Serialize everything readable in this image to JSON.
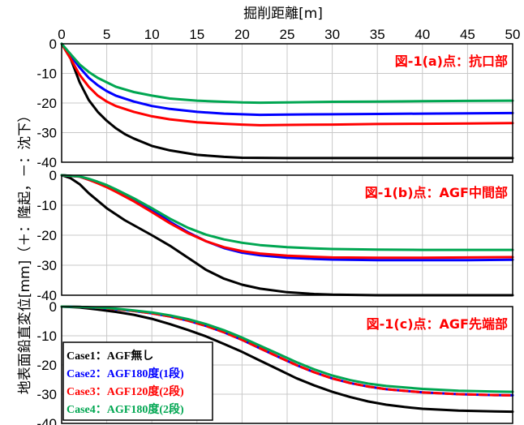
{
  "chart_data": {
    "type": "line",
    "title": "掘削距離[m]",
    "xlabel": "掘削距離[m]",
    "ylabel": "地表面鉛直変位[mm]（＋：隆起，－：沈下）",
    "xlim": [
      0,
      50
    ],
    "ylim": [
      -40,
      0
    ],
    "x_ticks": [
      "0",
      "5",
      "10",
      "15",
      "20",
      "25",
      "30",
      "35",
      "40",
      "45",
      "50"
    ],
    "y_ticks": [
      "0",
      "-10",
      "-20",
      "-30",
      "-40"
    ],
    "grid": true,
    "legend_position": "bottom-left",
    "legend": [
      {
        "label": "Case1：AGF無し",
        "color": "#000000"
      },
      {
        "label": "Case2：AGF180度(1段)",
        "color": "#0000ff"
      },
      {
        "label": "Case3：AGF120度(2段)",
        "color": "#ff0000"
      },
      {
        "label": "Case4：AGF180度(2段)",
        "color": "#00a651"
      }
    ],
    "panels": [
      {
        "label": "図-1(a)点：抗口部",
        "series": [
          {
            "name": "Case1：AGF無し",
            "color": "#000000",
            "x": [
              0,
              1,
              2,
              3,
              4,
              5,
              6,
              7,
              8,
              10,
              12,
              15,
              18,
              20,
              25,
              30,
              35,
              40,
              45,
              50
            ],
            "y": [
              0,
              -5,
              -13,
              -19,
              -23,
              -26,
              -28.5,
              -30.5,
              -32,
              -34.5,
              -36,
              -37.5,
              -38.2,
              -38.5,
              -38.6,
              -38.6,
              -38.6,
              -38.6,
              -38.6,
              -38.6
            ]
          },
          {
            "name": "Case2：AGF180度(1段)",
            "color": "#0000ff",
            "x": [
              0,
              1,
              2,
              3,
              4,
              5,
              6,
              8,
              10,
              12,
              15,
              18,
              20,
              22,
              25,
              30,
              35,
              40,
              45,
              50
            ],
            "y": [
              0,
              -4,
              -8,
              -11.5,
              -14,
              -16,
              -17.5,
              -19.5,
              -21,
              -22,
              -23,
              -23.6,
              -23.8,
              -24,
              -23.9,
              -23.8,
              -23.7,
              -23.6,
              -23.5,
              -23.4
            ]
          },
          {
            "name": "Case3：AGF120度(2段)",
            "color": "#ff0000",
            "x": [
              0,
              1,
              2,
              3,
              4,
              5,
              6,
              8,
              10,
              12,
              15,
              18,
              20,
              22,
              25,
              30,
              35,
              40,
              45,
              50
            ],
            "y": [
              0,
              -5,
              -10.5,
              -14.5,
              -17.5,
              -19.5,
              -21,
              -23,
              -24.5,
              -25.5,
              -26.5,
              -27,
              -27.3,
              -27.5,
              -27.4,
              -27.3,
              -27.1,
              -27,
              -26.9,
              -26.8
            ]
          },
          {
            "name": "Case4：AGF180度(2段)",
            "color": "#00a651",
            "x": [
              0,
              1,
              2,
              3,
              4,
              5,
              6,
              8,
              10,
              12,
              15,
              18,
              20,
              22,
              25,
              30,
              35,
              40,
              45,
              50
            ],
            "y": [
              0,
              -3.5,
              -7,
              -9.5,
              -11.5,
              -13,
              -14.5,
              -16.3,
              -17.5,
              -18.5,
              -19.2,
              -19.6,
              -19.8,
              -19.9,
              -19.8,
              -19.6,
              -19.5,
              -19.4,
              -19.3,
              -19.2
            ]
          }
        ]
      },
      {
        "label": "図-1(b)点：AGF中間部",
        "series": [
          {
            "name": "Case1：AGF無し",
            "color": "#000000",
            "x": [
              0,
              1,
              2,
              3,
              5,
              7,
              10,
              12,
              14,
              15,
              16,
              18,
              20,
              22,
              25,
              28,
              30,
              35,
              40,
              45,
              50
            ],
            "y": [
              0,
              -1,
              -3,
              -6,
              -11,
              -15,
              -20,
              -23.5,
              -27.5,
              -29.5,
              -31.5,
              -34.5,
              -36.5,
              -37.8,
              -39,
              -39.6,
              -39.8,
              -40,
              -40,
              -40,
              -40
            ]
          },
          {
            "name": "Case2：AGF180度(1段)",
            "color": "#0000ff",
            "x": [
              0,
              2,
              3,
              4,
              5,
              6,
              8,
              10,
              12,
              14,
              16,
              18,
              20,
              22,
              25,
              28,
              30,
              35,
              40,
              45,
              50
            ],
            "y": [
              0,
              -0.5,
              -1.5,
              -2.5,
              -3.5,
              -5,
              -8,
              -11.5,
              -15.5,
              -19,
              -22,
              -24.3,
              -25.8,
              -26.7,
              -27.5,
              -27.9,
              -28.1,
              -28.3,
              -28.3,
              -28.3,
              -28.2
            ]
          },
          {
            "name": "Case3：AGF120度(2段)",
            "color": "#ff0000",
            "x": [
              0,
              2,
              3,
              4,
              5,
              6,
              8,
              10,
              12,
              14,
              16,
              18,
              20,
              22,
              25,
              28,
              30,
              35,
              40,
              45,
              50
            ],
            "y": [
              0,
              -0.5,
              -1.5,
              -2.7,
              -4,
              -5.5,
              -8.7,
              -12.3,
              -16,
              -19.3,
              -22,
              -24,
              -25.3,
              -26.1,
              -26.8,
              -27.2,
              -27.4,
              -27.5,
              -27.5,
              -27.4,
              -27.3
            ]
          },
          {
            "name": "Case4：AGF180度(2段)",
            "color": "#00a651",
            "x": [
              0,
              2,
              3,
              4,
              5,
              6,
              8,
              10,
              12,
              14,
              16,
              18,
              20,
              22,
              25,
              28,
              30,
              35,
              40,
              45,
              50
            ],
            "y": [
              0,
              -0.4,
              -1.2,
              -2.2,
              -3.3,
              -4.7,
              -7.7,
              -11,
              -14.5,
              -17.5,
              -19.8,
              -21.4,
              -22.5,
              -23.3,
              -24,
              -24.4,
              -24.6,
              -24.8,
              -24.9,
              -24.9,
              -24.9
            ]
          }
        ]
      },
      {
        "label": "図-1(c)点：AGF先端部",
        "series": [
          {
            "name": "Case1：AGF無し",
            "color": "#000000",
            "x": [
              0,
              2,
              4,
              6,
              8,
              10,
              12,
              14,
              16,
              18,
              20,
              22,
              24,
              26,
              28,
              30,
              32,
              34,
              36,
              38,
              40,
              44,
              48,
              50
            ],
            "y": [
              0,
              -0.3,
              -1,
              -1.8,
              -2.8,
              -4.2,
              -6,
              -8,
              -10.2,
              -12.8,
              -15.5,
              -18.5,
              -21.5,
              -24.5,
              -27,
              -29.2,
              -31,
              -32.5,
              -33.6,
              -34.4,
              -35,
              -35.6,
              -35.9,
              -36
            ]
          },
          {
            "name": "Case2：AGF180度(1段)",
            "color": "#0000ff",
            "x": [
              0,
              2,
              4,
              6,
              8,
              10,
              12,
              14,
              16,
              18,
              20,
              22,
              24,
              26,
              28,
              30,
              32,
              34,
              36,
              40,
              44,
              48,
              50
            ],
            "y": [
              0,
              -0.1,
              -0.4,
              -0.9,
              -1.5,
              -2.3,
              -3.4,
              -4.8,
              -6.6,
              -8.8,
              -11.4,
              -14.3,
              -17.2,
              -20,
              -22.5,
              -24.6,
              -26.2,
              -27.4,
              -28.3,
              -29.4,
              -30,
              -30.3,
              -30.4
            ]
          },
          {
            "name": "Case3：AGF120度(2段)",
            "color": "#ff0000",
            "x": [
              0,
              2,
              4,
              6,
              8,
              10,
              12,
              14,
              16,
              18,
              20,
              22,
              24,
              26,
              28,
              30,
              32,
              34,
              36,
              40,
              44,
              48,
              50
            ],
            "y": [
              0,
              -0.1,
              -0.4,
              -0.9,
              -1.5,
              -2.3,
              -3.4,
              -4.8,
              -6.6,
              -8.8,
              -11.4,
              -14.3,
              -17.2,
              -20,
              -22.5,
              -24.6,
              -26.2,
              -27.4,
              -28.3,
              -29.4,
              -30,
              -30.3,
              -30.4
            ]
          },
          {
            "name": "Case4：AGF180度(2段)",
            "color": "#00a651",
            "x": [
              0,
              2,
              4,
              6,
              8,
              10,
              12,
              14,
              16,
              18,
              20,
              22,
              24,
              26,
              28,
              30,
              32,
              34,
              36,
              40,
              44,
              48,
              50
            ],
            "y": [
              0,
              -0.1,
              -0.3,
              -0.7,
              -1.3,
              -2,
              -3,
              -4.3,
              -6,
              -8.1,
              -10.6,
              -13.4,
              -16.2,
              -19,
              -21.5,
              -23.6,
              -25.2,
              -26.4,
              -27.2,
              -28.2,
              -28.8,
              -29.1,
              -29.2
            ]
          }
        ]
      }
    ]
  }
}
